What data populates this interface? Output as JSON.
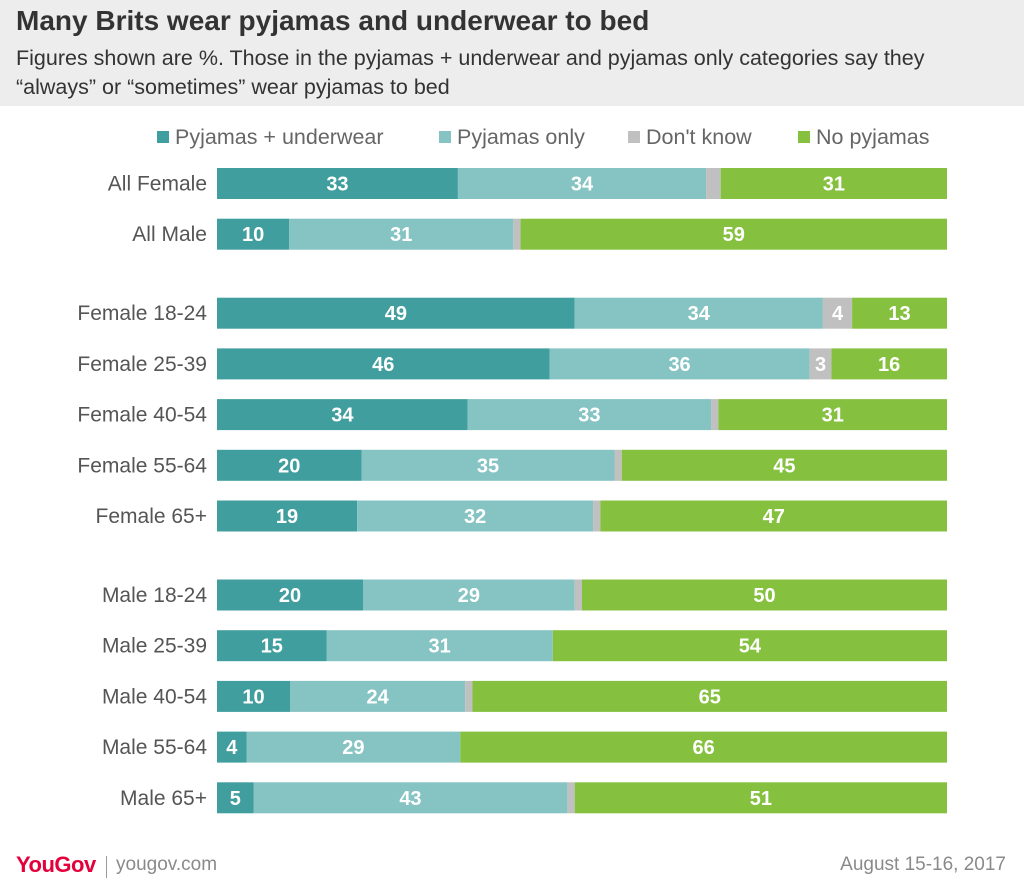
{
  "header": {
    "title": "Many Brits wear pyjamas and underwear to bed",
    "subtitle": "Figures shown are %. Those in the pyjamas + underwear and pyjamas only categories say they “always” or “sometimes” wear pyjamas to bed"
  },
  "legend": [
    {
      "label": "Pyjamas + underwear",
      "color": "#419e9e"
    },
    {
      "label": "Pyjamas only",
      "color": "#86c3c3"
    },
    {
      "label": "Don't know",
      "color": "#c0c0c0"
    },
    {
      "label": "No pyjamas",
      "color": "#85c13f"
    }
  ],
  "chart_data": {
    "type": "bar",
    "orientation": "horizontal",
    "stacked": true,
    "title": "Many Brits wear pyjamas and underwear to bed",
    "subtitle": "Figures shown are %. Those in the pyjamas + underwear and pyjamas only categories say they “always” or “sometimes” wear pyjamas to bed",
    "categories": [
      "All Female",
      "All Male",
      "Female 18-24",
      "Female 25-39",
      "Female 40-54",
      "Female 55-64",
      "Female 65+",
      "Male 18-24",
      "Male 25-39",
      "Male 40-54",
      "Male 55-64",
      "Male 65+"
    ],
    "groups": [
      [
        0,
        1
      ],
      [
        2,
        3,
        4,
        5,
        6
      ],
      [
        7,
        8,
        9,
        10,
        11
      ]
    ],
    "series": [
      {
        "name": "Pyjamas + underwear",
        "color": "#419e9e",
        "values": [
          33,
          10,
          49,
          46,
          34,
          20,
          19,
          20,
          15,
          10,
          4,
          5
        ]
      },
      {
        "name": "Pyjamas only",
        "color": "#86c3c3",
        "values": [
          34,
          31,
          34,
          36,
          33,
          35,
          32,
          29,
          31,
          24,
          29,
          43
        ]
      },
      {
        "name": "Don't know",
        "color": "#c0c0c0",
        "values": [
          2,
          1,
          4,
          3,
          1,
          1,
          1,
          1,
          0,
          1,
          0,
          1
        ]
      },
      {
        "name": "No pyjamas",
        "color": "#85c13f",
        "values": [
          31,
          59,
          13,
          16,
          31,
          45,
          47,
          50,
          54,
          65,
          66,
          51
        ]
      }
    ],
    "labels_shown": [
      [
        true,
        true,
        false,
        true
      ],
      [
        true,
        true,
        false,
        true
      ],
      [
        true,
        true,
        true,
        true
      ],
      [
        true,
        true,
        true,
        true
      ],
      [
        true,
        true,
        false,
        true
      ],
      [
        true,
        true,
        false,
        true
      ],
      [
        true,
        true,
        false,
        true
      ],
      [
        true,
        true,
        false,
        true
      ],
      [
        true,
        true,
        false,
        true
      ],
      [
        true,
        true,
        false,
        true
      ],
      [
        true,
        true,
        false,
        true
      ],
      [
        true,
        true,
        false,
        true
      ]
    ],
    "xlim": [
      0,
      100
    ],
    "grid": false,
    "legend_position": "top"
  },
  "footer": {
    "logo": "YouGov",
    "site": "yougov.com",
    "date": "August 15-16, 2017"
  }
}
